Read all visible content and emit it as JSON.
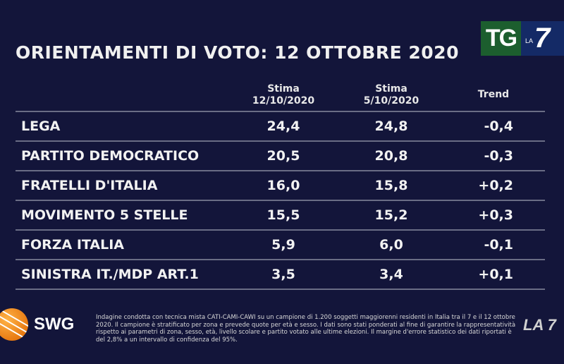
{
  "title": "ORIENTAMENTI DI VOTO: 12 OTTOBRE 2020",
  "broadcaster_logo": {
    "tg": "TG",
    "la": "LA",
    "seven": "7",
    "green": "#1c5e2e",
    "blue": "#142a66"
  },
  "columns": [
    {
      "line1": "Stima",
      "line2": "12/10/2020"
    },
    {
      "line1": "Stima",
      "line2": "5/10/2020"
    },
    {
      "line1": "Trend",
      "line2": ""
    }
  ],
  "rows": [
    {
      "party": "LEGA",
      "current": "24,4",
      "previous": "24,8",
      "trend": "-0,4"
    },
    {
      "party": "PARTITO DEMOCRATICO",
      "current": "20,5",
      "previous": "20,8",
      "trend": "-0,3"
    },
    {
      "party": "FRATELLI D'ITALIA",
      "current": "16,0",
      "previous": "15,8",
      "trend": "+0,2"
    },
    {
      "party": "MOVIMENTO 5 STELLE",
      "current": "15,5",
      "previous": "15,2",
      "trend": "+0,3"
    },
    {
      "party": "FORZA ITALIA",
      "current": "5,9",
      "previous": "6,0",
      "trend": "-0,1"
    },
    {
      "party": "SINISTRA IT./MDP ART.1",
      "current": "3,5",
      "previous": "3,4",
      "trend": "+0,1"
    }
  ],
  "pollster": "SWG",
  "footnote": "Indagine condotta con tecnica mista CATI-CAMI-CAWI su un campione di 1.200 soggetti maggiorenni residenti in Italia tra il 7 e il 12 ottobre 2020. Il campione è stratificato per zona e prevede quote per età e sesso. I dati sono stati ponderati al fine di garantire la rappresentatività rispetto ai parametri di zona, sesso, età, livello scolare e partito votato alle ultime elezioni. Il margine d'errore statistico dei dati riportati è del 2,8% a un intervallo di confidenza del 95%.",
  "watermark": "LA 7"
}
